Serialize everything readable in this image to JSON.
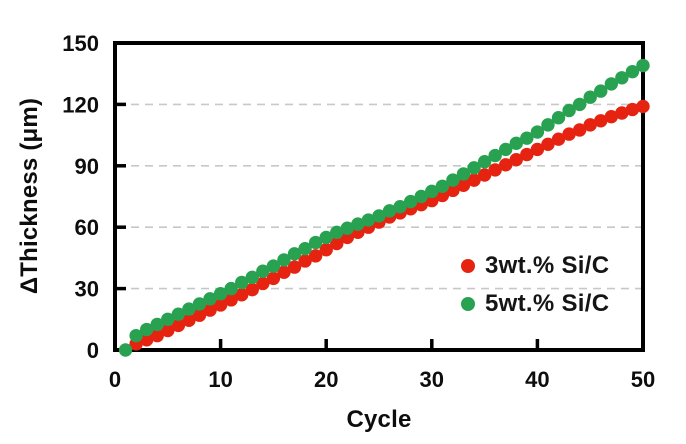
{
  "figure": {
    "background": "#ffffff",
    "text_color": "#0d0d0d"
  },
  "chart_data": {
    "type": "scatter",
    "title": "",
    "xlabel": "Cycle",
    "ylabel": "ΔThickness (μm)",
    "xlim": [
      0,
      50
    ],
    "ylim": [
      0,
      150
    ],
    "xticks": [
      0,
      10,
      20,
      30,
      40,
      50
    ],
    "yticks": [
      0,
      30,
      60,
      90,
      120,
      150
    ],
    "grid": "horizontal-dashed",
    "gridline_color": "#c8c8c8",
    "border_color": "#000000",
    "legend_position": "inside-bottom-right",
    "series": [
      {
        "name": "3wt.% Si/C",
        "color": "#e62310",
        "marker": "circle",
        "x": [
          2,
          3,
          4,
          5,
          6,
          7,
          8,
          9,
          10,
          11,
          12,
          13,
          14,
          15,
          16,
          17,
          18,
          19,
          20,
          21,
          22,
          23,
          24,
          25,
          26,
          27,
          28,
          29,
          30,
          31,
          32,
          33,
          34,
          35,
          36,
          37,
          38,
          39,
          40,
          41,
          42,
          43,
          44,
          45,
          46,
          47,
          48,
          49,
          50
        ],
        "y": [
          3,
          5,
          7,
          9.5,
          12,
          14.5,
          17,
          19.5,
          22,
          24.5,
          27,
          29.5,
          32.5,
          35,
          38,
          40.5,
          43.5,
          46,
          49,
          52,
          55,
          57.5,
          60,
          62.5,
          65,
          67,
          69,
          71,
          73,
          75.5,
          78,
          80.5,
          83,
          85.5,
          88,
          90.5,
          93,
          95.5,
          98,
          100.5,
          103,
          105.5,
          107.5,
          110,
          112,
          114,
          115.8,
          117.5,
          119
        ]
      },
      {
        "name": "5wt.% Si/C",
        "color": "#28a150",
        "marker": "circle",
        "x": [
          1,
          2,
          3,
          4,
          5,
          6,
          7,
          8,
          9,
          10,
          11,
          12,
          13,
          14,
          15,
          16,
          17,
          18,
          19,
          20,
          21,
          22,
          23,
          24,
          25,
          26,
          27,
          28,
          29,
          30,
          31,
          32,
          33,
          34,
          35,
          36,
          37,
          38,
          39,
          40,
          41,
          42,
          43,
          44,
          45,
          46,
          47,
          48,
          49,
          50
        ],
        "y": [
          0,
          7,
          10,
          12.5,
          15,
          17.5,
          20,
          22.5,
          25,
          27.5,
          30,
          33,
          35.5,
          38.5,
          41,
          44,
          47,
          49.5,
          52.5,
          55,
          57.5,
          59.5,
          61.5,
          63.5,
          65.5,
          68,
          70,
          72.5,
          75,
          77.5,
          80,
          83,
          86,
          89,
          92,
          95,
          98,
          101,
          103.5,
          106.5,
          110,
          113.5,
          117,
          120,
          123.5,
          126.5,
          130,
          133,
          136,
          139
        ]
      }
    ]
  }
}
